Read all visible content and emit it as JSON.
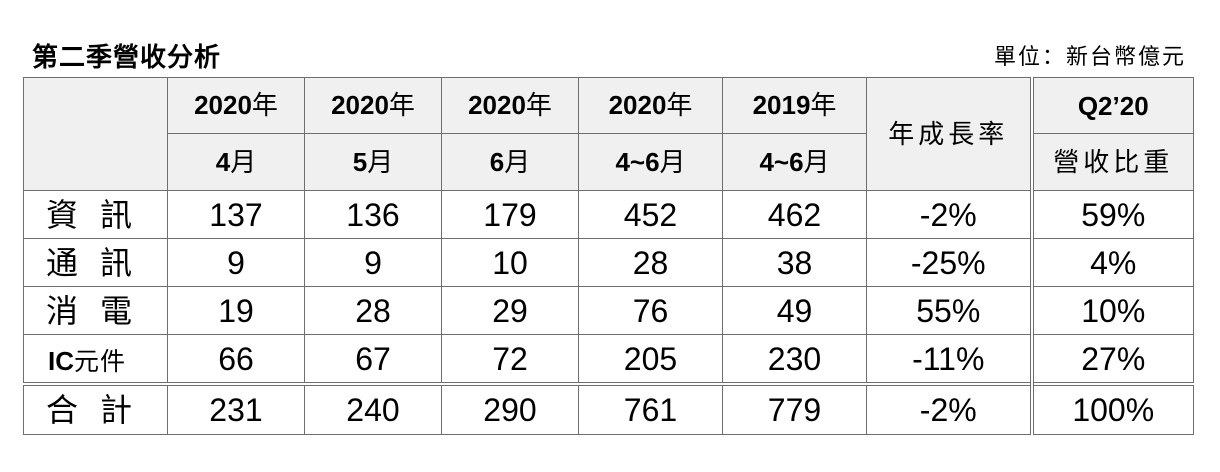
{
  "header": {
    "title": "第二季營收分析",
    "unit": "單位：新台幣億元"
  },
  "table": {
    "columns": [
      {
        "year": "2020",
        "year_suffix": "年",
        "period": "4",
        "period_suffix": "月"
      },
      {
        "year": "2020",
        "year_suffix": "年",
        "period": "5",
        "period_suffix": "月"
      },
      {
        "year": "2020",
        "year_suffix": "年",
        "period": "6",
        "period_suffix": "月"
      },
      {
        "year": "2020",
        "year_suffix": "年",
        "period": "4~6",
        "period_suffix": "月"
      },
      {
        "year": "2019",
        "year_suffix": "年",
        "period": "4~6",
        "period_suffix": "月"
      }
    ],
    "growth_header": "年成長率",
    "share_header_top": "Q2’20",
    "share_header_bottom": "營收比重",
    "rows": [
      {
        "label": "資訊",
        "label_chars": [
          "資",
          "訊"
        ],
        "values": [
          "137",
          "136",
          "179",
          "452",
          "462"
        ],
        "growth": "-2%",
        "share": "59%"
      },
      {
        "label": "通訊",
        "label_chars": [
          "通",
          "訊"
        ],
        "values": [
          "9",
          "9",
          "10",
          "28",
          "38"
        ],
        "growth": "-25%",
        "share": "4%"
      },
      {
        "label": "消電",
        "label_chars": [
          "消",
          "電"
        ],
        "values": [
          "19",
          "28",
          "29",
          "76",
          "49"
        ],
        "growth": "55%",
        "share": "10%"
      },
      {
        "label": "IC元件",
        "label_latin": "IC",
        "label_cjk": "元件",
        "values": [
          "66",
          "67",
          "72",
          "205",
          "230"
        ],
        "growth": "-11%",
        "share": "27%"
      }
    ],
    "total": {
      "label": "合計",
      "label_chars": [
        "合",
        "計"
      ],
      "values": [
        "231",
        "240",
        "290",
        "761",
        "779"
      ],
      "growth": "-2%",
      "share": "100%"
    }
  }
}
